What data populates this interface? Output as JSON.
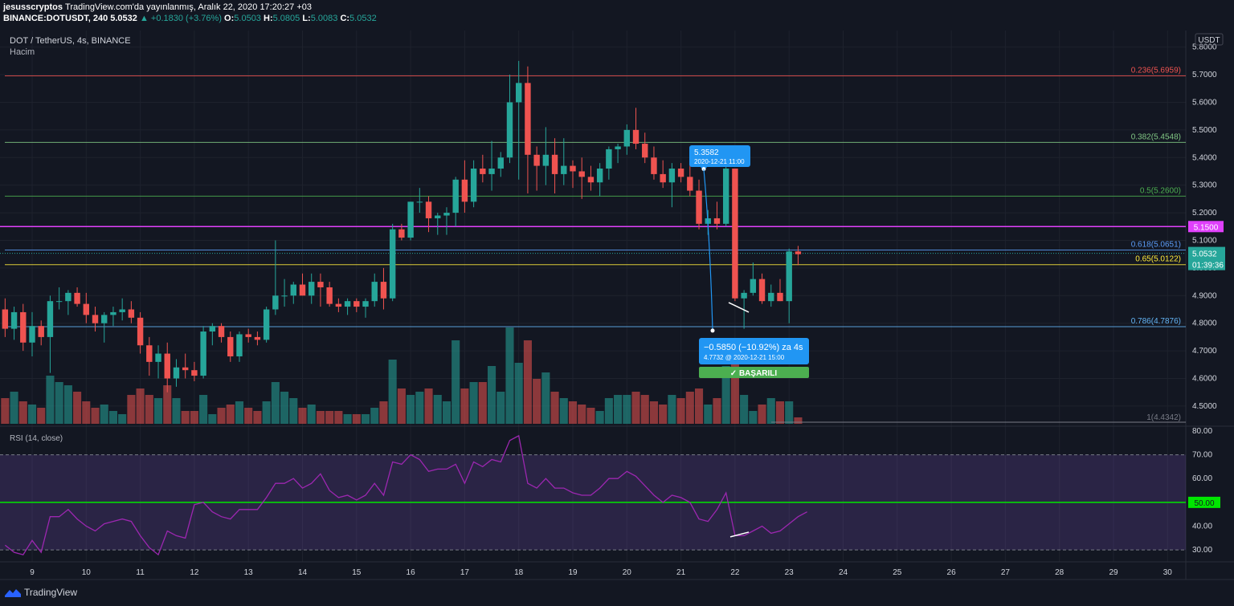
{
  "header": {
    "author": "jesusscryptos",
    "published": "TradingView.com'da yayınlanmış, Aralık 22, 2020 17:20:27 +03",
    "symbol": "BINANCE:DOTUSDT, 240",
    "last": "5.0532",
    "change": "▲ +0.1830 (+3.76%)",
    "o_label": "O:",
    "o": "5.0503",
    "h_label": "H:",
    "h": "5.0805",
    "l_label": "L:",
    "l": "5.0083",
    "c_label": "C:",
    "c": "5.0532"
  },
  "branding": {
    "name": "TradingView"
  },
  "colors": {
    "bg": "#131722",
    "grid": "#1e222d",
    "up": "#26a69a",
    "down": "#ef5350",
    "fib_0236": "#ef5350",
    "fib_0382": "#81c784",
    "fib_05": "#4caf50",
    "fib_0618": "#5b9cf6",
    "fib_065": "#ffeb3b",
    "fib_0786": "#64b5f6",
    "magenta": "#e040fb",
    "rsi_line": "#9c27b0",
    "rsi_mid": "#00e600",
    "label_blue": "#2196f3",
    "success": "#4caf50"
  },
  "chart_data": [
    {
      "type": "candlestick",
      "title": "DOT / TetherUS, 4s, BINANCE",
      "volume_label": "Hacim",
      "currency": "USDT",
      "ylim": [
        4.43,
        5.86
      ],
      "y_ticks": [
        "5.8000",
        "5.7000",
        "5.6000",
        "5.5000",
        "5.4000",
        "5.3000",
        "5.2000",
        "5.1000",
        "5.0000",
        "4.9000",
        "4.8000",
        "4.7000",
        "4.6000",
        "4.5000"
      ],
      "x_ticks": [
        "9",
        "10",
        "11",
        "12",
        "13",
        "14",
        "15",
        "16",
        "17",
        "18",
        "19",
        "20",
        "21",
        "22",
        "23",
        "24",
        "25",
        "26",
        "27",
        "28",
        "29",
        "30"
      ],
      "candles": [
        {
          "o": 4.85,
          "h": 4.89,
          "l": 4.75,
          "c": 4.78,
          "v": 0.08
        },
        {
          "o": 4.78,
          "h": 4.86,
          "l": 4.74,
          "c": 4.84,
          "v": 0.1
        },
        {
          "o": 4.84,
          "h": 4.87,
          "l": 4.7,
          "c": 4.73,
          "v": 0.07
        },
        {
          "o": 4.73,
          "h": 4.84,
          "l": 4.68,
          "c": 4.79,
          "v": 0.06
        },
        {
          "o": 4.79,
          "h": 4.81,
          "l": 4.72,
          "c": 4.75,
          "v": 0.05
        },
        {
          "o": 4.75,
          "h": 4.9,
          "l": 4.62,
          "c": 4.88,
          "v": 0.15
        },
        {
          "o": 4.88,
          "h": 4.93,
          "l": 4.85,
          "c": 4.88,
          "v": 0.13
        },
        {
          "o": 4.88,
          "h": 4.92,
          "l": 4.83,
          "c": 4.91,
          "v": 0.12
        },
        {
          "o": 4.91,
          "h": 4.93,
          "l": 4.86,
          "c": 4.87,
          "v": 0.1
        },
        {
          "o": 4.87,
          "h": 4.91,
          "l": 4.8,
          "c": 4.83,
          "v": 0.07
        },
        {
          "o": 4.83,
          "h": 4.86,
          "l": 4.77,
          "c": 4.8,
          "v": 0.05
        },
        {
          "o": 4.8,
          "h": 4.84,
          "l": 4.73,
          "c": 4.83,
          "v": 0.06
        },
        {
          "o": 4.83,
          "h": 4.86,
          "l": 4.79,
          "c": 4.84,
          "v": 0.04
        },
        {
          "o": 4.84,
          "h": 4.89,
          "l": 4.81,
          "c": 4.85,
          "v": 0.03
        },
        {
          "o": 4.85,
          "h": 4.88,
          "l": 4.8,
          "c": 4.82,
          "v": 0.09
        },
        {
          "o": 4.82,
          "h": 4.84,
          "l": 4.69,
          "c": 4.72,
          "v": 0.11
        },
        {
          "o": 4.72,
          "h": 4.75,
          "l": 4.61,
          "c": 4.66,
          "v": 0.09
        },
        {
          "o": 4.66,
          "h": 4.72,
          "l": 4.6,
          "c": 4.69,
          "v": 0.08
        },
        {
          "o": 4.69,
          "h": 4.73,
          "l": 4.55,
          "c": 4.6,
          "v": 0.12
        },
        {
          "o": 4.6,
          "h": 4.67,
          "l": 4.57,
          "c": 4.64,
          "v": 0.08
        },
        {
          "o": 4.64,
          "h": 4.69,
          "l": 4.6,
          "c": 4.63,
          "v": 0.04
        },
        {
          "o": 4.63,
          "h": 4.66,
          "l": 4.59,
          "c": 4.61,
          "v": 0.04
        },
        {
          "o": 4.61,
          "h": 4.79,
          "l": 4.6,
          "c": 4.77,
          "v": 0.09
        },
        {
          "o": 4.77,
          "h": 4.8,
          "l": 4.72,
          "c": 4.79,
          "v": 0.03
        },
        {
          "o": 4.79,
          "h": 4.8,
          "l": 4.73,
          "c": 4.75,
          "v": 0.05
        },
        {
          "o": 4.75,
          "h": 4.77,
          "l": 4.66,
          "c": 4.68,
          "v": 0.06
        },
        {
          "o": 4.68,
          "h": 4.77,
          "l": 4.66,
          "c": 4.76,
          "v": 0.07
        },
        {
          "o": 4.76,
          "h": 4.78,
          "l": 4.73,
          "c": 4.75,
          "v": 0.05
        },
        {
          "o": 4.75,
          "h": 4.77,
          "l": 4.72,
          "c": 4.74,
          "v": 0.04
        },
        {
          "o": 4.74,
          "h": 4.86,
          "l": 4.73,
          "c": 4.85,
          "v": 0.07
        },
        {
          "o": 4.85,
          "h": 5.1,
          "l": 4.83,
          "c": 4.9,
          "v": 0.13
        },
        {
          "o": 4.9,
          "h": 4.96,
          "l": 4.86,
          "c": 4.9,
          "v": 0.1
        },
        {
          "o": 4.9,
          "h": 4.95,
          "l": 4.87,
          "c": 4.94,
          "v": 0.08
        },
        {
          "o": 4.94,
          "h": 4.98,
          "l": 4.9,
          "c": 4.9,
          "v": 0.05
        },
        {
          "o": 4.9,
          "h": 4.98,
          "l": 4.87,
          "c": 4.95,
          "v": 0.06
        },
        {
          "o": 4.95,
          "h": 4.98,
          "l": 4.86,
          "c": 4.93,
          "v": 0.04
        },
        {
          "o": 4.93,
          "h": 4.95,
          "l": 4.86,
          "c": 4.87,
          "v": 0.04
        },
        {
          "o": 4.87,
          "h": 4.89,
          "l": 4.84,
          "c": 4.86,
          "v": 0.04
        },
        {
          "o": 4.86,
          "h": 4.89,
          "l": 4.83,
          "c": 4.88,
          "v": 0.03
        },
        {
          "o": 4.88,
          "h": 4.89,
          "l": 4.84,
          "c": 4.86,
          "v": 0.03
        },
        {
          "o": 4.86,
          "h": 4.89,
          "l": 4.82,
          "c": 4.88,
          "v": 0.03
        },
        {
          "o": 4.88,
          "h": 4.98,
          "l": 4.86,
          "c": 4.95,
          "v": 0.05
        },
        {
          "o": 4.95,
          "h": 5.0,
          "l": 4.85,
          "c": 4.89,
          "v": 0.07
        },
        {
          "o": 4.89,
          "h": 5.16,
          "l": 4.88,
          "c": 5.14,
          "v": 0.2
        },
        {
          "o": 5.14,
          "h": 5.16,
          "l": 5.1,
          "c": 5.11,
          "v": 0.11
        },
        {
          "o": 5.11,
          "h": 5.24,
          "l": 5.1,
          "c": 5.24,
          "v": 0.09
        },
        {
          "o": 5.24,
          "h": 5.29,
          "l": 5.2,
          "c": 5.24,
          "v": 0.1
        },
        {
          "o": 5.24,
          "h": 5.26,
          "l": 5.13,
          "c": 5.18,
          "v": 0.11
        },
        {
          "o": 5.18,
          "h": 5.2,
          "l": 5.12,
          "c": 5.19,
          "v": 0.09
        },
        {
          "o": 5.19,
          "h": 5.22,
          "l": 5.12,
          "c": 5.2,
          "v": 0.07
        },
        {
          "o": 5.2,
          "h": 5.33,
          "l": 5.15,
          "c": 5.32,
          "v": 0.26
        },
        {
          "o": 5.32,
          "h": 5.39,
          "l": 5.2,
          "c": 5.24,
          "v": 0.11
        },
        {
          "o": 5.24,
          "h": 5.39,
          "l": 5.22,
          "c": 5.36,
          "v": 0.13
        },
        {
          "o": 5.36,
          "h": 5.41,
          "l": 5.31,
          "c": 5.34,
          "v": 0.13
        },
        {
          "o": 5.34,
          "h": 5.46,
          "l": 5.28,
          "c": 5.36,
          "v": 0.18
        },
        {
          "o": 5.36,
          "h": 5.42,
          "l": 5.33,
          "c": 5.4,
          "v": 0.1
        },
        {
          "o": 5.4,
          "h": 5.7,
          "l": 5.38,
          "c": 5.6,
          "v": 0.3
        },
        {
          "o": 5.6,
          "h": 5.75,
          "l": 5.32,
          "c": 5.67,
          "v": 0.19
        },
        {
          "o": 5.67,
          "h": 5.73,
          "l": 5.27,
          "c": 5.41,
          "v": 0.26
        },
        {
          "o": 5.41,
          "h": 5.44,
          "l": 5.28,
          "c": 5.37,
          "v": 0.14
        },
        {
          "o": 5.37,
          "h": 5.51,
          "l": 5.3,
          "c": 5.41,
          "v": 0.16
        },
        {
          "o": 5.41,
          "h": 5.47,
          "l": 5.27,
          "c": 5.34,
          "v": 0.1
        },
        {
          "o": 5.34,
          "h": 5.47,
          "l": 5.3,
          "c": 5.37,
          "v": 0.08
        },
        {
          "o": 5.37,
          "h": 5.39,
          "l": 5.29,
          "c": 5.35,
          "v": 0.07
        },
        {
          "o": 5.35,
          "h": 5.4,
          "l": 5.25,
          "c": 5.33,
          "v": 0.06
        },
        {
          "o": 5.33,
          "h": 5.37,
          "l": 5.28,
          "c": 5.31,
          "v": 0.05
        },
        {
          "o": 5.31,
          "h": 5.38,
          "l": 5.26,
          "c": 5.36,
          "v": 0.04
        },
        {
          "o": 5.36,
          "h": 5.44,
          "l": 5.32,
          "c": 5.43,
          "v": 0.08
        },
        {
          "o": 5.43,
          "h": 5.45,
          "l": 5.38,
          "c": 5.44,
          "v": 0.09
        },
        {
          "o": 5.44,
          "h": 5.52,
          "l": 5.41,
          "c": 5.5,
          "v": 0.09
        },
        {
          "o": 5.5,
          "h": 5.58,
          "l": 5.43,
          "c": 5.45,
          "v": 0.1
        },
        {
          "o": 5.45,
          "h": 5.49,
          "l": 5.38,
          "c": 5.4,
          "v": 0.09
        },
        {
          "o": 5.4,
          "h": 5.44,
          "l": 5.32,
          "c": 5.34,
          "v": 0.07
        },
        {
          "o": 5.34,
          "h": 5.39,
          "l": 5.29,
          "c": 5.31,
          "v": 0.06
        },
        {
          "o": 5.31,
          "h": 5.38,
          "l": 5.22,
          "c": 5.36,
          "v": 0.09
        },
        {
          "o": 5.36,
          "h": 5.38,
          "l": 5.31,
          "c": 5.33,
          "v": 0.08
        },
        {
          "o": 5.33,
          "h": 5.38,
          "l": 5.26,
          "c": 5.28,
          "v": 0.1
        },
        {
          "o": 5.28,
          "h": 5.32,
          "l": 5.14,
          "c": 5.16,
          "v": 0.11
        },
        {
          "o": 5.16,
          "h": 5.21,
          "l": 5.12,
          "c": 5.18,
          "v": 0.06
        },
        {
          "o": 5.18,
          "h": 5.24,
          "l": 5.14,
          "c": 5.16,
          "v": 0.08
        },
        {
          "o": 5.16,
          "h": 5.37,
          "l": 5.15,
          "c": 5.36,
          "v": 0.18
        },
        {
          "o": 5.36,
          "h": 5.36,
          "l": 4.88,
          "c": 4.89,
          "v": 0.2
        },
        {
          "o": 4.89,
          "h": 4.92,
          "l": 4.78,
          "c": 4.91,
          "v": 0.09
        },
        {
          "o": 4.91,
          "h": 5.02,
          "l": 4.9,
          "c": 4.96,
          "v": 0.04
        },
        {
          "o": 4.96,
          "h": 4.98,
          "l": 4.87,
          "c": 4.88,
          "v": 0.06
        },
        {
          "o": 4.88,
          "h": 4.94,
          "l": 4.86,
          "c": 4.91,
          "v": 0.08
        },
        {
          "o": 4.91,
          "h": 4.96,
          "l": 4.88,
          "c": 4.88,
          "v": 0.07
        },
        {
          "o": 4.88,
          "h": 5.07,
          "l": 4.8,
          "c": 5.06,
          "v": 0.07
        },
        {
          "o": 5.06,
          "h": 5.08,
          "l": 5.01,
          "c": 5.05,
          "v": 0.02
        }
      ],
      "fib_levels": [
        {
          "label": "0.236(5.6959)",
          "price": 5.6959,
          "color_key": "fib_0236"
        },
        {
          "label": "0.382(5.4548)",
          "price": 5.4548,
          "color_key": "fib_0382"
        },
        {
          "label": "0.5(5.2600)",
          "price": 5.26,
          "color_key": "fib_05"
        },
        {
          "label": "0.618(5.0651)",
          "price": 5.0651,
          "color_key": "fib_0618"
        },
        {
          "label": "0.65(5.0122)",
          "price": 5.0122,
          "color_key": "fib_065"
        },
        {
          "label": "0.786(4.7876)",
          "price": 4.7876,
          "color_key": "fib_0786"
        },
        {
          "label": "1(4.4342)",
          "price": 4.4342,
          "color_key": "grid"
        }
      ],
      "horizontal_line": {
        "price": 5.15,
        "label": "5.1500"
      },
      "price_tag": {
        "price": 5.0532,
        "label": "5.0532",
        "countdown": "01:39:36"
      },
      "annotations": {
        "high_tag": {
          "value": "5.3582",
          "date": "2020-12-21 11:00",
          "price": 5.3582
        },
        "measure": {
          "text": "−0.5850 (−10.92%) za 4s",
          "sub": "4.7732 @ 2020-12-21  15:00",
          "price": 4.7732
        },
        "badge": "✓ BAŞARILI"
      }
    },
    {
      "type": "line",
      "title": "RSI (14, close)",
      "ylim": [
        25,
        82
      ],
      "y_ticks": [
        "80.00",
        "70.00",
        "60.00",
        "50.00",
        "40.00",
        "30.00"
      ],
      "bands": [
        70,
        30
      ],
      "midline": {
        "value": 50,
        "label": "50.00"
      },
      "values": [
        32,
        29,
        28,
        34,
        29,
        44,
        44,
        47,
        43,
        40,
        38,
        41,
        42,
        43,
        42,
        36,
        31,
        28,
        38,
        36,
        35,
        49,
        50,
        46,
        44,
        43,
        47,
        47,
        47,
        52,
        58,
        58,
        60,
        56,
        58,
        62,
        55,
        52,
        53,
        51,
        53,
        58,
        53,
        67,
        66,
        70,
        68,
        63,
        64,
        64,
        66,
        58,
        67,
        65,
        68,
        67,
        76,
        78,
        58,
        56,
        60,
        56,
        56,
        54,
        53,
        53,
        56,
        60,
        60,
        63,
        61,
        57,
        53,
        50,
        53,
        52,
        50,
        43,
        42,
        47,
        54,
        36,
        36,
        38,
        40,
        37,
        38,
        41,
        44,
        46
      ]
    }
  ]
}
